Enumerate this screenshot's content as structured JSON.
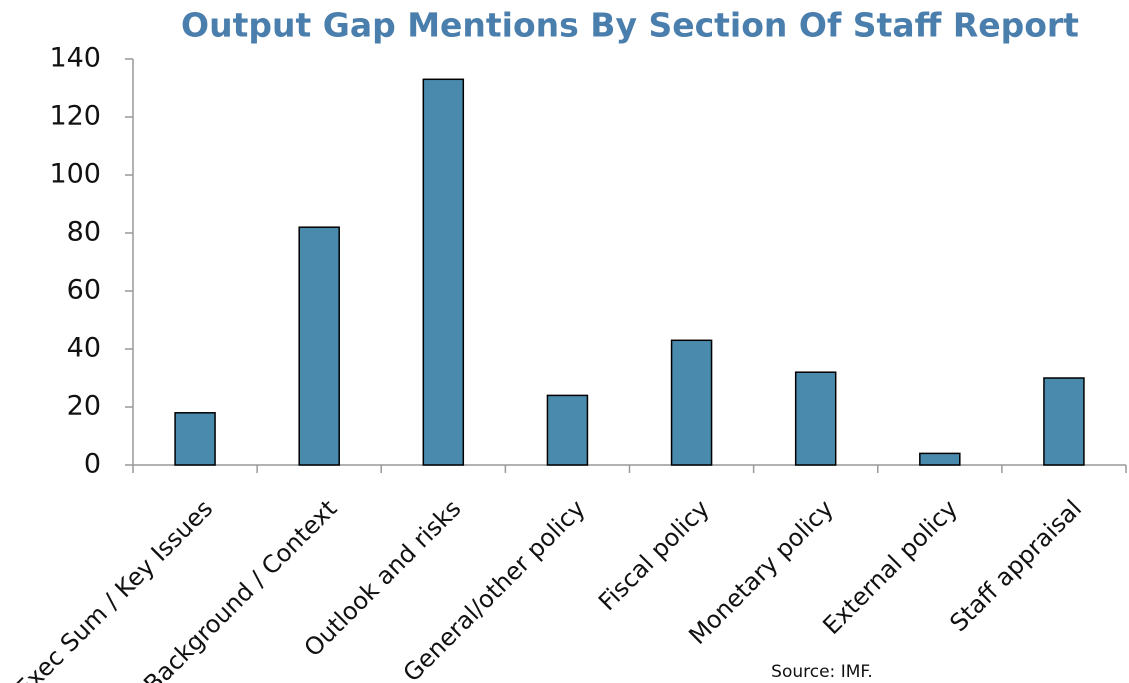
{
  "chart_data": {
    "type": "bar",
    "title": "Output Gap Mentions By Section Of Staff Report",
    "categories": [
      "Exec Sum / Key Issues",
      "Background / Context",
      "Outlook and risks",
      "General/other policy",
      "Fiscal policy",
      "Monetary policy",
      "External policy",
      "Staff appraisal"
    ],
    "values": [
      18,
      82,
      133,
      24,
      43,
      32,
      4,
      30
    ],
    "color": "#4a8aad",
    "ylim": [
      0,
      140
    ],
    "yticks": [
      0,
      20,
      40,
      60,
      80,
      100,
      120,
      140
    ],
    "grid": false,
    "source": "Source: IMF."
  }
}
